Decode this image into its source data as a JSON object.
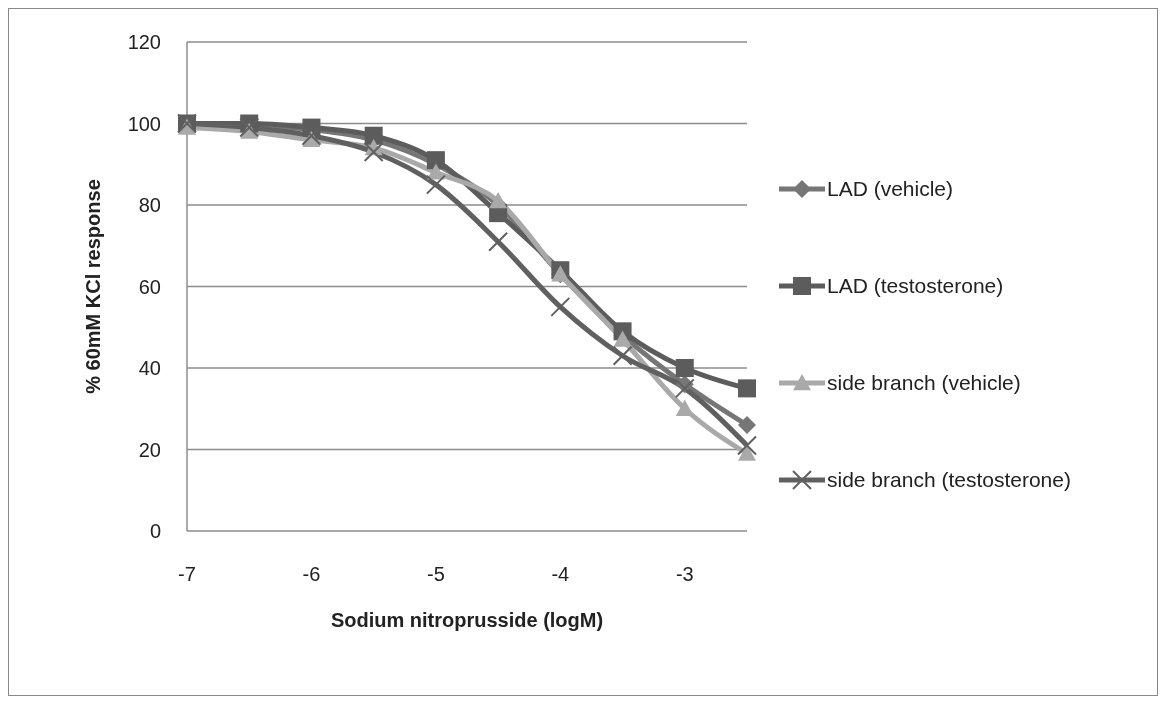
{
  "chart_data": {
    "type": "line",
    "xlabel": "Sodium nitroprusside (logM)",
    "ylabel": "% 60mM KCl response",
    "categories": [
      "-7",
      null,
      "-6",
      null,
      "-5",
      null,
      "-4",
      null,
      "-3",
      null
    ],
    "ylim": [
      0,
      120
    ],
    "yticks": [
      0,
      20,
      40,
      60,
      80,
      100,
      120
    ],
    "grid": "y",
    "legend": "right",
    "line_style": "solid",
    "series": [
      {
        "name": "LAD (vehicle)",
        "color": "#767676",
        "marker": "diamond",
        "values": [
          100,
          99.5,
          98.5,
          96,
          90,
          80,
          63,
          48,
          36,
          26
        ]
      },
      {
        "name": "LAD (testosterone)",
        "color": "#5c5c5c",
        "marker": "square",
        "values": [
          100,
          100,
          99,
          97,
          91,
          78,
          64,
          49,
          40,
          35
        ]
      },
      {
        "name": "side branch (vehicle)",
        "color": "#a9a9a9",
        "marker": "triangle",
        "values": [
          99,
          98,
          96,
          94,
          88,
          81,
          63,
          47,
          30,
          19
        ]
      },
      {
        "name": "side branch (testosterone)",
        "color": "#606060",
        "marker": "cross",
        "values": [
          100,
          99,
          97,
          93,
          85,
          71,
          55,
          43,
          35,
          21
        ]
      }
    ]
  }
}
